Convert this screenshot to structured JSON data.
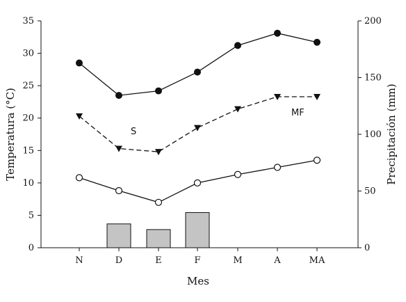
{
  "chart_data": {
    "type": "line",
    "xlabel": "Mes",
    "ylabel": "Temperatura (°C)",
    "y2label": "Precipitación (mm)",
    "categories": [
      "N",
      "D",
      "E",
      "F",
      "M",
      "A",
      "MA"
    ],
    "ylim": [
      0,
      35
    ],
    "y2lim": [
      0,
      200
    ],
    "yticks": [
      0,
      5,
      10,
      15,
      20,
      25,
      30,
      35
    ],
    "y2ticks": [
      0,
      50,
      100,
      150,
      200
    ],
    "grid": false,
    "series": [
      {
        "kind": "line",
        "style": "solid",
        "marker": "filled-circle",
        "values": [
          28.5,
          23.5,
          24.2,
          27.1,
          31.2,
          33.1,
          31.7
        ]
      },
      {
        "kind": "line",
        "style": "dashed",
        "marker": "filled-triangle-down",
        "values": [
          20.3,
          15.3,
          14.8,
          18.5,
          21.4,
          23.3,
          23.3
        ]
      },
      {
        "kind": "line",
        "style": "solid",
        "marker": "open-circle",
        "values": [
          10.8,
          8.8,
          7.0,
          10.0,
          11.3,
          12.4,
          13.5
        ]
      },
      {
        "kind": "bar",
        "axis": "right",
        "values": [
          0,
          21,
          16,
          31,
          0,
          0,
          0
        ]
      }
    ],
    "annotations": [
      {
        "text": "S",
        "near": "D"
      },
      {
        "text": "MF",
        "near": "A"
      }
    ]
  }
}
